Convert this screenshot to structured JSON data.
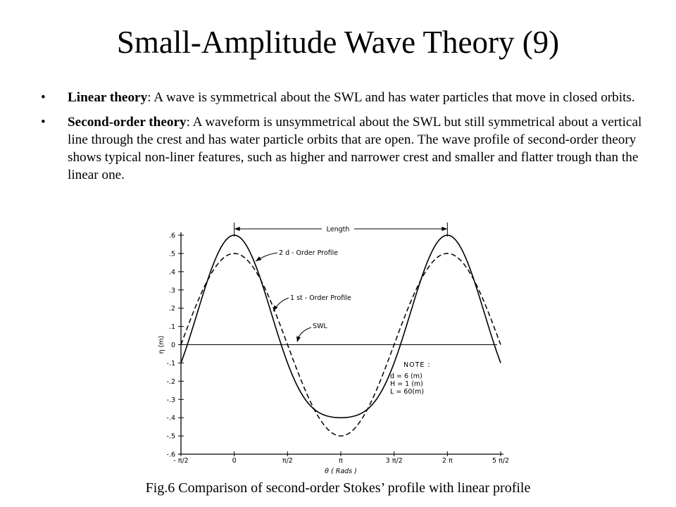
{
  "slide": {
    "title": "Small-Amplitude Wave Theory (9)",
    "bullet_glyph": "•",
    "bullets": [
      {
        "term": "Linear theory",
        "text": ": A wave is symmetrical about the SWL and has water particles that move in closed orbits."
      },
      {
        "term": "Second-order theory",
        "text": ": A waveform is unsymmetrical about the SWL but still symmetrical about a vertical line through the crest and has water particle orbits that are open. The wave profile of second-order theory shows typical non-liner features, such as higher and narrower crest and smaller and flatter trough than the linear one."
      }
    ],
    "caption": "Fig.6 Comparison of second-order Stokes’ profile with linear profile"
  },
  "chart_data": {
    "type": "line",
    "xlabel": "θ  ( Rads )",
    "ylabel": "η (m)",
    "xlim": [
      -1.5708,
      7.854
    ],
    "ylim": [
      -0.6,
      0.6
    ],
    "x_ticks": [
      -1.5708,
      0,
      1.5708,
      3.1416,
      4.7124,
      6.2832,
      7.854
    ],
    "x_tick_labels": [
      "- π/2",
      "0",
      "π/2",
      "π",
      "3 π/2",
      "2 π",
      "5 π/2"
    ],
    "y_ticks": [
      0.6,
      0.5,
      0.4,
      0.3,
      0.2,
      0.1,
      0,
      -0.1,
      -0.2,
      -0.3,
      -0.4,
      -0.5,
      -0.6
    ],
    "y_tick_labels": [
      ".6",
      ".5",
      ".4",
      ".3",
      ".2",
      ".1",
      "0",
      "-.1",
      "-.2",
      "-.3",
      "-.4",
      "-.5",
      "-.6"
    ],
    "series": [
      {
        "name": "1 st - Order Profile",
        "style": "dashed",
        "formula": "0.5*cos(theta)",
        "x": [
          -1.5708,
          -1.1781,
          -0.7854,
          -0.3927,
          0,
          0.3927,
          0.7854,
          1.1781,
          1.5708,
          1.9635,
          2.3562,
          2.7489,
          3.1416,
          3.5343,
          3.927,
          4.3197,
          4.7124,
          5.1051,
          5.4978,
          5.8905,
          6.2832,
          6.6759,
          7.0686,
          7.4613,
          7.854
        ],
        "y": [
          0,
          0.191,
          0.354,
          0.462,
          0.5,
          0.462,
          0.354,
          0.191,
          0,
          -0.191,
          -0.354,
          -0.462,
          -0.5,
          -0.462,
          -0.354,
          -0.191,
          0,
          0.191,
          0.354,
          0.462,
          0.5,
          0.462,
          0.354,
          0.191,
          0
        ]
      },
      {
        "name": "2 d - Order Profile",
        "style": "solid",
        "formula": "0.5*cos(theta) + 0.1*cos(2*theta)",
        "x": [
          -1.5708,
          -1.1781,
          -0.7854,
          -0.3927,
          0,
          0.3927,
          0.7854,
          1.1781,
          1.5708,
          1.9635,
          2.3562,
          2.7489,
          3.1416,
          3.5343,
          3.927,
          4.3197,
          4.7124,
          5.1051,
          5.4978,
          5.8905,
          6.2832,
          6.6759,
          7.0686,
          7.4613,
          7.854
        ],
        "y": [
          -0.1,
          0.12,
          0.354,
          0.533,
          0.6,
          0.533,
          0.354,
          0.12,
          -0.1,
          -0.262,
          -0.354,
          -0.391,
          -0.4,
          -0.391,
          -0.354,
          -0.262,
          -0.1,
          0.12,
          0.354,
          0.533,
          0.6,
          0.533,
          0.354,
          0.12,
          -0.1
        ]
      }
    ],
    "annotations": {
      "length_label": "Length",
      "second_order_label": "2 d - Order  Profile",
      "first_order_label": "1 st - Order  Profile",
      "swl_label": "SWL",
      "note_title": "NOTE :",
      "note_lines": [
        "d = 6  (m)",
        "H = 1  (m)",
        "L = 60(m)"
      ]
    },
    "grid": false,
    "legend": "none"
  }
}
